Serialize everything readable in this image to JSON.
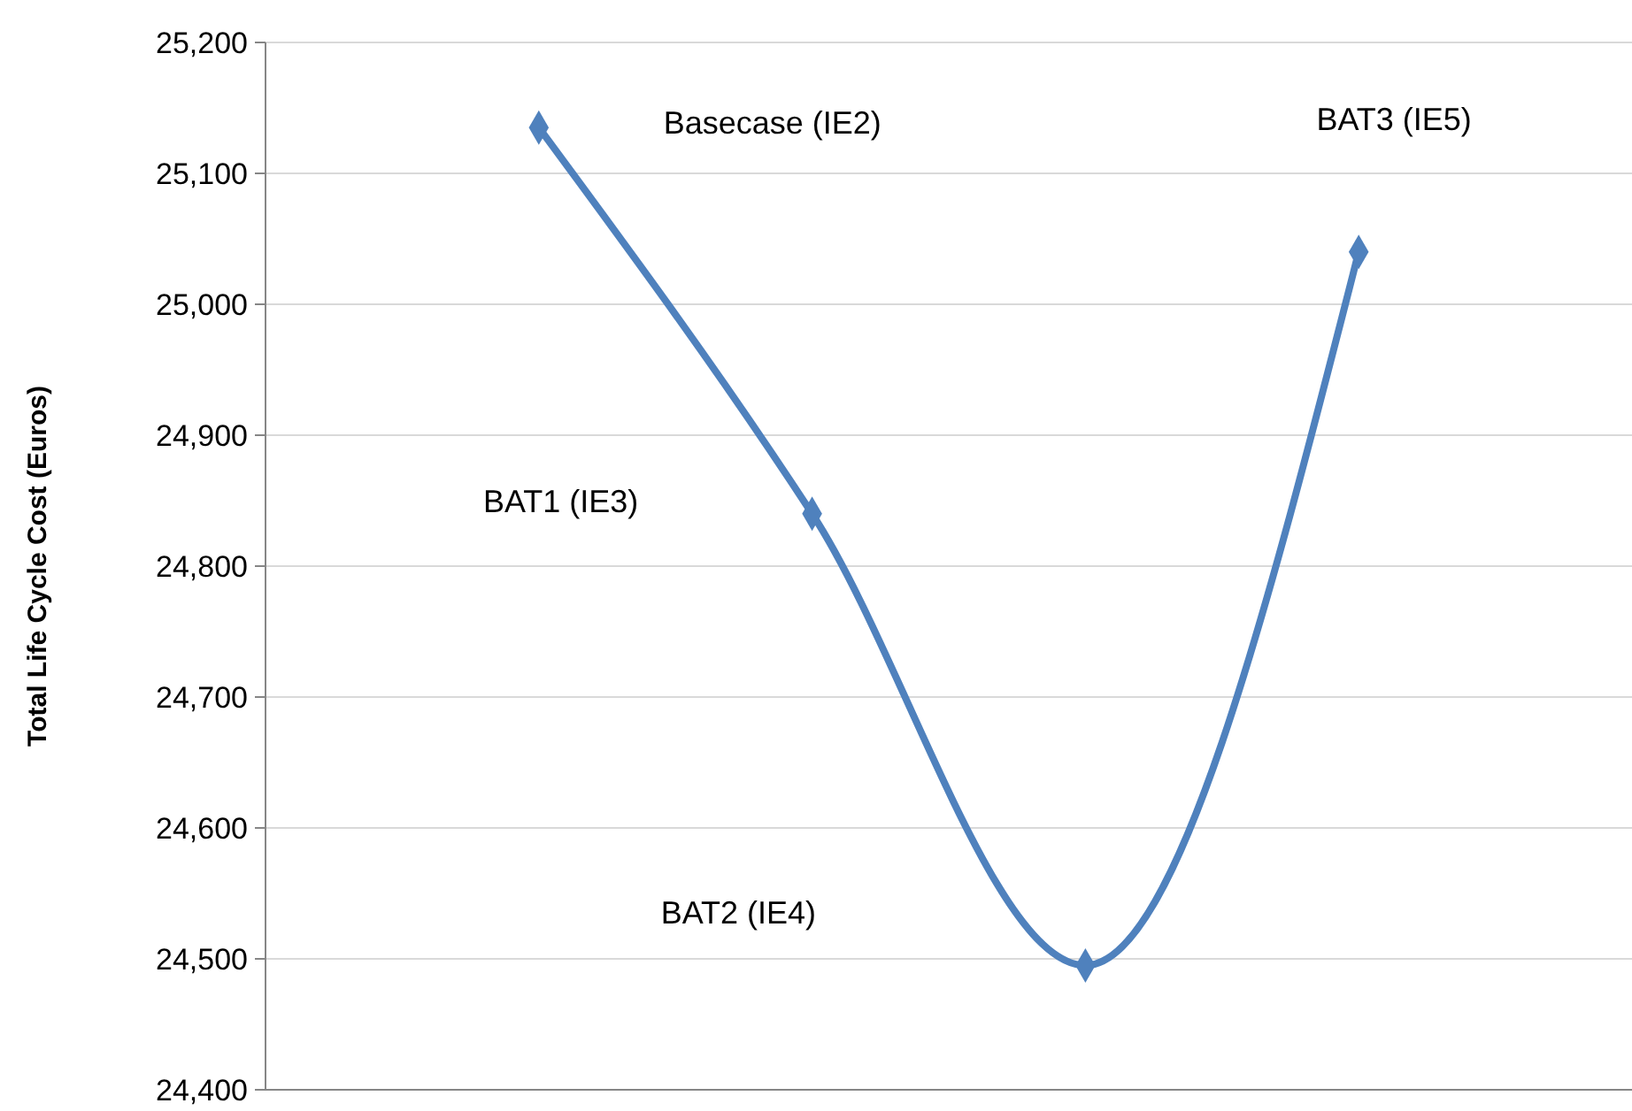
{
  "chart_data": {
    "type": "line",
    "ylabel": "Total Life Cycle Cost (Euros)",
    "categories": [
      null,
      null,
      null,
      null
    ],
    "series": [
      {
        "color": "#4f81bd",
        "values": [
          25135,
          24840,
          24495,
          25040
        ]
      }
    ],
    "ylim": [
      24400,
      25200
    ],
    "yticks": [
      {
        "value": 24400,
        "label": "24,400"
      },
      {
        "value": 24500,
        "label": "24,500"
      },
      {
        "value": 24600,
        "label": "24,600"
      },
      {
        "value": 24700,
        "label": "24,700"
      },
      {
        "value": 24800,
        "label": "24,800"
      },
      {
        "value": 24900,
        "label": "24,900"
      },
      {
        "value": 25000,
        "label": "25,000"
      },
      {
        "value": 25100,
        "label": "25,100"
      },
      {
        "value": 25200,
        "label": "25,200"
      }
    ],
    "grid": "y",
    "marker": "diamond",
    "line_style": "solid",
    "annotations": [
      "Basecase (IE2)",
      "BAT1 (IE3)",
      "BAT2 (IE4)",
      "BAT3 (IE5)"
    ]
  }
}
